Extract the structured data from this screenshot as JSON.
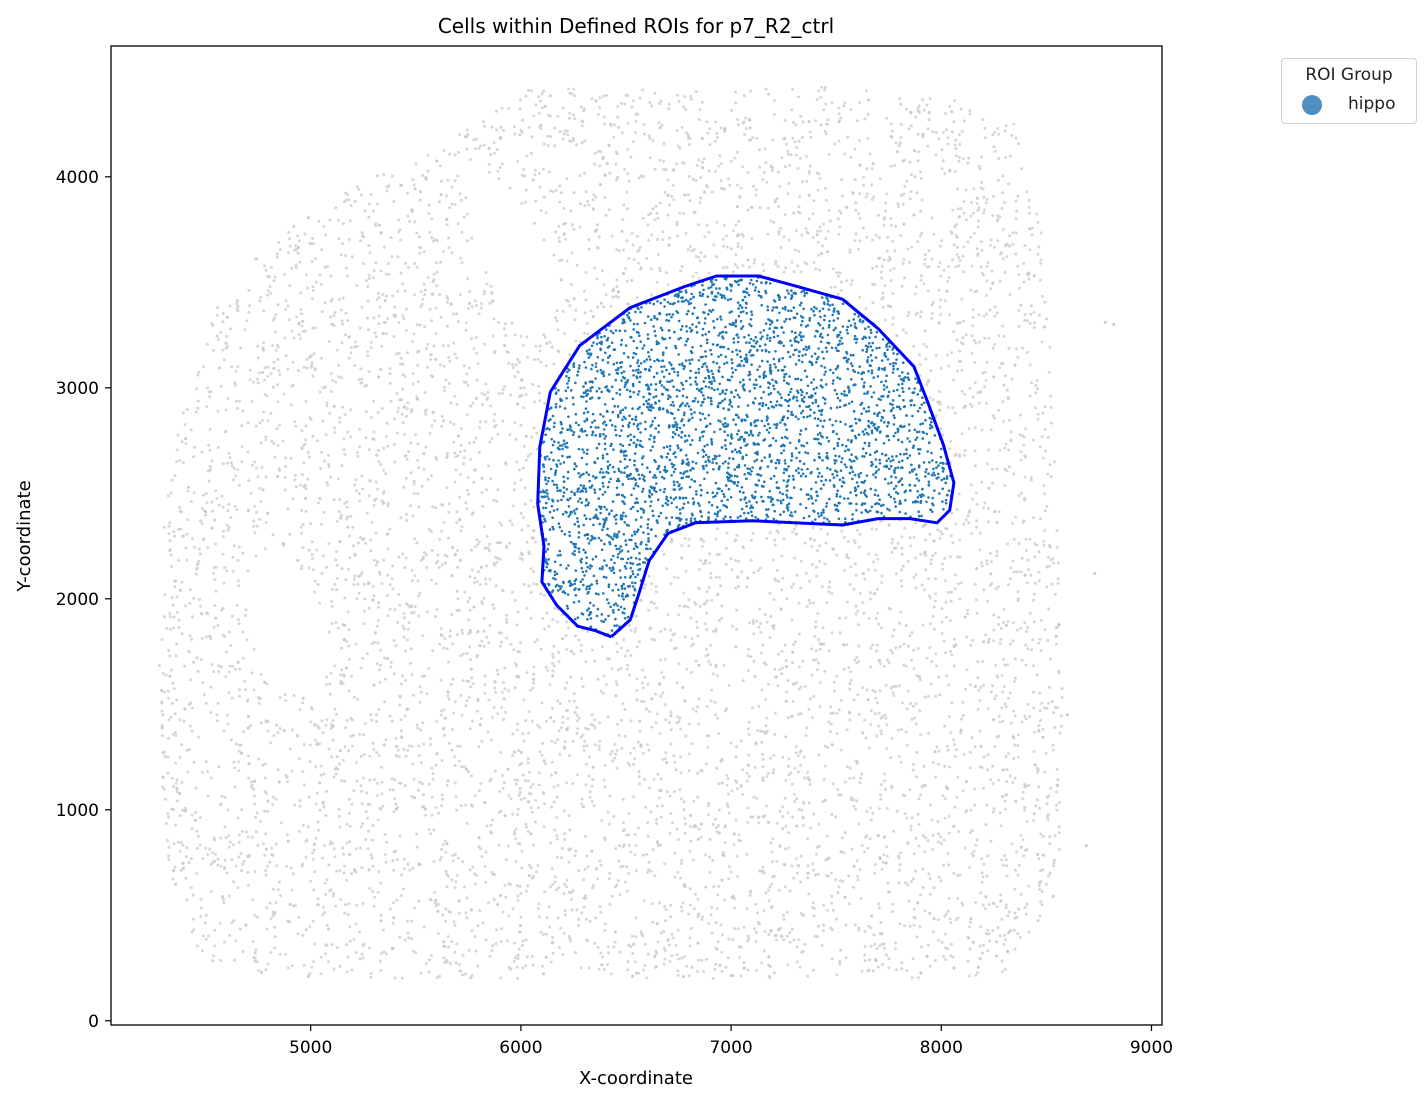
{
  "chart_data": {
    "type": "scatter",
    "title": "Cells within Defined ROIs for p7_R2_ctrl",
    "xlabel": "X-coordinate",
    "ylabel": "Y-coordinate",
    "xlim": [
      4050,
      9050
    ],
    "ylim": [
      -20,
      4620
    ],
    "xticks": [
      5000,
      6000,
      7000,
      8000,
      9000
    ],
    "yticks": [
      0,
      1000,
      2000,
      3000,
      4000
    ],
    "grid": false,
    "legend": {
      "title": "ROI Group",
      "placement": "outside top-right",
      "entries": [
        {
          "label": "hippo",
          "color": "#4f8fc2"
        }
      ]
    },
    "colors": {
      "background_cells": "#c8c8c8",
      "roi_cells": "#1f77b4",
      "roi_outline": "#0000ff"
    },
    "roi": {
      "name": "hippo",
      "polygon": [
        [
          6430,
          1820
        ],
        [
          6350,
          1850
        ],
        [
          6270,
          1870
        ],
        [
          6170,
          1970
        ],
        [
          6100,
          2080
        ],
        [
          6110,
          2250
        ],
        [
          6080,
          2450
        ],
        [
          6090,
          2720
        ],
        [
          6140,
          2980
        ],
        [
          6280,
          3200
        ],
        [
          6520,
          3380
        ],
        [
          6780,
          3480
        ],
        [
          6930,
          3530
        ],
        [
          7130,
          3530
        ],
        [
          7280,
          3490
        ],
        [
          7530,
          3420
        ],
        [
          7700,
          3280
        ],
        [
          7870,
          3100
        ],
        [
          7940,
          2920
        ],
        [
          8010,
          2730
        ],
        [
          8060,
          2550
        ],
        [
          8040,
          2420
        ],
        [
          7980,
          2360
        ],
        [
          7850,
          2380
        ],
        [
          7700,
          2380
        ],
        [
          7530,
          2350
        ],
        [
          7300,
          2360
        ],
        [
          7100,
          2370
        ],
        [
          6830,
          2360
        ],
        [
          6700,
          2310
        ],
        [
          6610,
          2180
        ],
        [
          6560,
          2020
        ],
        [
          6520,
          1900
        ]
      ]
    },
    "tissue_outline": [
      [
        4280,
        1220
      ],
      [
        4320,
        700
      ],
      [
        4420,
        400
      ],
      [
        4600,
        200
      ],
      [
        8280,
        200
      ],
      [
        8560,
        600
      ],
      [
        8590,
        1500
      ],
      [
        8540,
        2800
      ],
      [
        8480,
        3800
      ],
      [
        8340,
        4280
      ],
      [
        7900,
        4410
      ],
      [
        7400,
        4430
      ],
      [
        6700,
        4420
      ],
      [
        6060,
        4430
      ],
      [
        5600,
        4130
      ],
      [
        5240,
        3990
      ],
      [
        4820,
        3700
      ],
      [
        4560,
        3420
      ],
      [
        4420,
        3000
      ],
      [
        4310,
        2520
      ],
      [
        4280,
        1800
      ]
    ],
    "tissue_gaps": [
      [
        [
          5700,
          4100
        ],
        [
          5960,
          3930
        ],
        [
          6150,
          3630
        ],
        [
          6200,
          3420
        ],
        [
          6060,
          3220
        ],
        [
          5890,
          3380
        ],
        [
          5760,
          3820
        ]
      ],
      [
        [
          4720,
          2200
        ],
        [
          4950,
          2150
        ],
        [
          5080,
          1880
        ],
        [
          5020,
          1520
        ],
        [
          4810,
          1580
        ],
        [
          4690,
          1900
        ]
      ]
    ]
  }
}
